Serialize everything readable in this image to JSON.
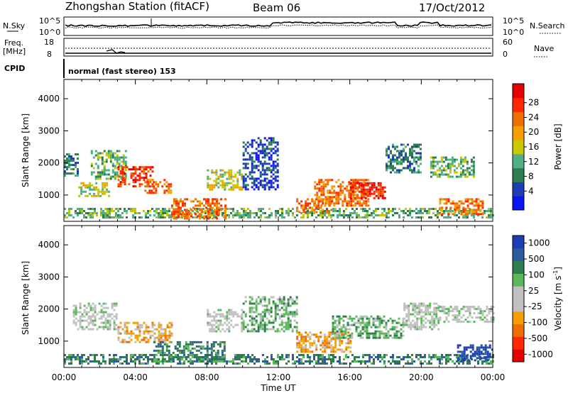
{
  "header": {
    "station": "Zhongshan Station (fitACF)",
    "beam": "Beam 06",
    "date": "17/Oct/2012"
  },
  "status_panel": {
    "left_label": "N.Sky",
    "left_ticks": [
      "10^5",
      "10^0"
    ],
    "right_ticks": [
      "10^5",
      "10^0"
    ],
    "right_label": "N.Search",
    "freq_label_1": "Freq.",
    "freq_label_2": "[MHz]",
    "freq_ticks": [
      "18",
      "8"
    ],
    "nave_ticks": [
      "60",
      "0"
    ],
    "nave_label": "Nave",
    "cpid_label": "CPID",
    "cpid_text": "normal (fast stereo) 153"
  },
  "colors": {
    "power_scale": [
      "#0a14f0",
      "#1e3cb4",
      "#2e7d4f",
      "#4fb083",
      "#c8c800",
      "#f5a000",
      "#f06e00",
      "#ff2800",
      "#e60000"
    ],
    "velocity_scale": [
      "#1e3cb4",
      "#2e5aa0",
      "#2e7d4f",
      "#5ab85a",
      "#c0c0c0",
      "#c0c0c0",
      "#f5a000",
      "#f06e00",
      "#ff2800",
      "#e60000"
    ]
  },
  "chart_data": [
    {
      "type": "heatmap",
      "title": "",
      "xlabel": "Time UT",
      "ylabel": "Slant Range [km]",
      "x_ticks": [
        "00:00",
        "04:00",
        "08:00",
        "12:00",
        "16:00",
        "20:00",
        "00:00"
      ],
      "y_ticks": [
        "1000",
        "2000",
        "3000",
        "4000"
      ],
      "ylim": [
        180,
        4600
      ],
      "colorbar": {
        "label": "Power [dB]",
        "ticks": [
          "4",
          "8",
          "12",
          "16",
          "20",
          "24",
          "28"
        ]
      },
      "series": [
        {
          "t": [
            0,
            24
          ],
          "range": [
            300,
            600
          ],
          "level": 3
        },
        {
          "t": [
            0,
            0.8
          ],
          "range": [
            1600,
            2300
          ],
          "level": 2
        },
        {
          "t": [
            0.8,
            2.5
          ],
          "range": [
            1000,
            1400
          ],
          "level": 4
        },
        {
          "t": [
            1.5,
            3.5
          ],
          "range": [
            1500,
            2400
          ],
          "level": 3
        },
        {
          "t": [
            3,
            5
          ],
          "range": [
            1300,
            1900
          ],
          "level": 7
        },
        {
          "t": [
            4.5,
            6
          ],
          "range": [
            1100,
            1500
          ],
          "level": 6
        },
        {
          "t": [
            6,
            9
          ],
          "range": [
            300,
            900
          ],
          "level": 6
        },
        {
          "t": [
            8,
            10
          ],
          "range": [
            1200,
            1800
          ],
          "level": 4
        },
        {
          "t": [
            10,
            12
          ],
          "range": [
            1200,
            2800
          ],
          "level": 1
        },
        {
          "t": [
            13,
            15
          ],
          "range": [
            500,
            900
          ],
          "level": 6
        },
        {
          "t": [
            14,
            17
          ],
          "range": [
            700,
            1500
          ],
          "level": 6
        },
        {
          "t": [
            16,
            18
          ],
          "range": [
            900,
            1400
          ],
          "level": 7
        },
        {
          "t": [
            18,
            20
          ],
          "range": [
            1700,
            2600
          ],
          "level": 2
        },
        {
          "t": [
            21,
            23.5
          ],
          "range": [
            400,
            900
          ],
          "level": 6
        },
        {
          "t": [
            20.5,
            23
          ],
          "range": [
            1600,
            2200
          ],
          "level": 3
        }
      ]
    },
    {
      "type": "heatmap",
      "title": "",
      "xlabel": "Time UT",
      "ylabel": "Slant Range [km]",
      "x_ticks": [
        "00:00",
        "04:00",
        "08:00",
        "12:00",
        "16:00",
        "20:00",
        "00:00"
      ],
      "y_ticks": [
        "1000",
        "2000",
        "3000",
        "4000"
      ],
      "ylim": [
        180,
        4600
      ],
      "colorbar": {
        "label": "Velocity [m s",
        "label_sup": "-1",
        "label_end": "]",
        "ticks": [
          "1000",
          "500",
          "100",
          "25",
          "-25",
          "-100",
          "-500",
          "-1000"
        ]
      },
      "series": [
        {
          "t": [
            0,
            24
          ],
          "range": [
            300,
            600
          ],
          "level": 2
        },
        {
          "t": [
            0.5,
            3
          ],
          "range": [
            1400,
            2200
          ],
          "level": 4
        },
        {
          "t": [
            3,
            6
          ],
          "range": [
            1000,
            1600
          ],
          "level": 6
        },
        {
          "t": [
            5,
            9
          ],
          "range": [
            400,
            1000
          ],
          "level": 2
        },
        {
          "t": [
            8,
            10
          ],
          "range": [
            1300,
            2000
          ],
          "level": 4
        },
        {
          "t": [
            10,
            13
          ],
          "range": [
            1300,
            2400
          ],
          "level": 3
        },
        {
          "t": [
            13,
            16
          ],
          "range": [
            700,
            1300
          ],
          "level": 6
        },
        {
          "t": [
            15,
            19
          ],
          "range": [
            1100,
            1800
          ],
          "level": 3
        },
        {
          "t": [
            19,
            21
          ],
          "range": [
            1400,
            2200
          ],
          "level": 4
        },
        {
          "t": [
            21,
            24
          ],
          "range": [
            1600,
            2100
          ],
          "level": 4
        },
        {
          "t": [
            22,
            24
          ],
          "range": [
            400,
            900
          ],
          "level": 0
        }
      ]
    }
  ]
}
